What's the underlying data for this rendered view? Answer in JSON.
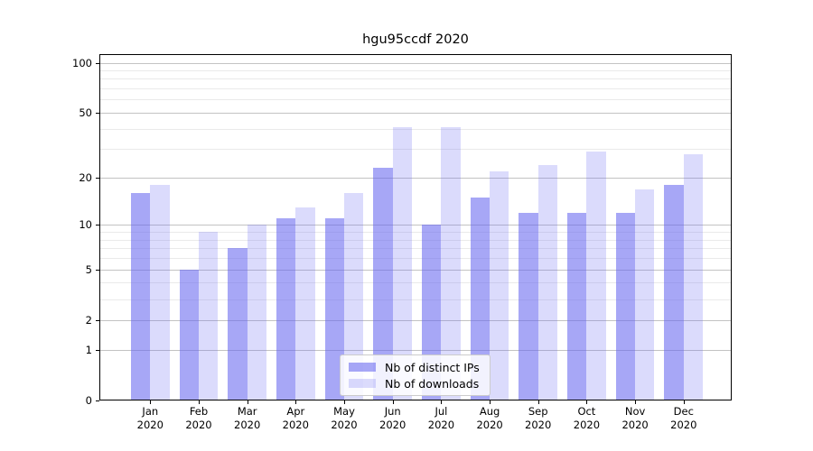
{
  "title": "hgu95ccdf 2020",
  "chart_data": {
    "type": "bar",
    "title": "hgu95ccdf 2020",
    "categories": [
      "Jan",
      "Feb",
      "Mar",
      "Apr",
      "May",
      "Jun",
      "Jul",
      "Aug",
      "Sep",
      "Oct",
      "Nov",
      "Dec"
    ],
    "category_year": "2020",
    "series": [
      {
        "name": "Nb of distinct IPs",
        "values": [
          16,
          5,
          7,
          11,
          11,
          23,
          10,
          15,
          12,
          12,
          12,
          18
        ],
        "color": "rgba(101,101,240,0.57)"
      },
      {
        "name": "Nb of downloads",
        "values": [
          18,
          9,
          10,
          13,
          16,
          41,
          41,
          22,
          24,
          29,
          17,
          28
        ],
        "color": "rgba(101,101,240,0.23)"
      }
    ],
    "xlabel": "",
    "ylabel": "",
    "y_axis": {
      "scale": "log1p",
      "major_ticks": [
        100,
        50,
        20,
        10,
        5,
        2,
        1,
        0
      ],
      "minor_gridlines": [
        3,
        4,
        6,
        7,
        8,
        9,
        30,
        40,
        60,
        70,
        80,
        90
      ],
      "ylim": [
        0,
        100
      ]
    },
    "grid": true,
    "legend": {
      "position": "lower center",
      "entries": [
        "Nb of distinct IPs",
        "Nb of downloads"
      ]
    }
  },
  "colors": {
    "bar_dark": "rgba(101,101,240,0.57)",
    "bar_light": "rgba(101,101,240,0.23)",
    "grid_major": "#c3c3c3",
    "grid_minor": "#eaeaea",
    "axis_spine": "#000000",
    "background": "#ffffff"
  }
}
